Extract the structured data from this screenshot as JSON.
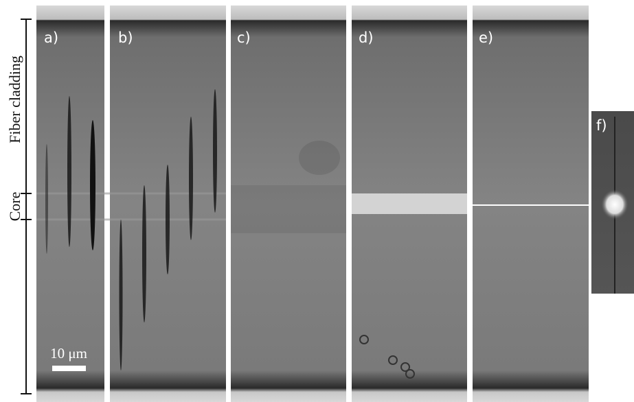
{
  "panels": [
    {
      "label": "a)"
    },
    {
      "label": "b)"
    },
    {
      "label": "c)"
    },
    {
      "label": "d)"
    },
    {
      "label": "e)"
    },
    {
      "label": "f)"
    }
  ],
  "axis": {
    "cladding": "Fiber cladding",
    "core": "Core"
  },
  "scale_bar": {
    "label": "10 μm"
  }
}
